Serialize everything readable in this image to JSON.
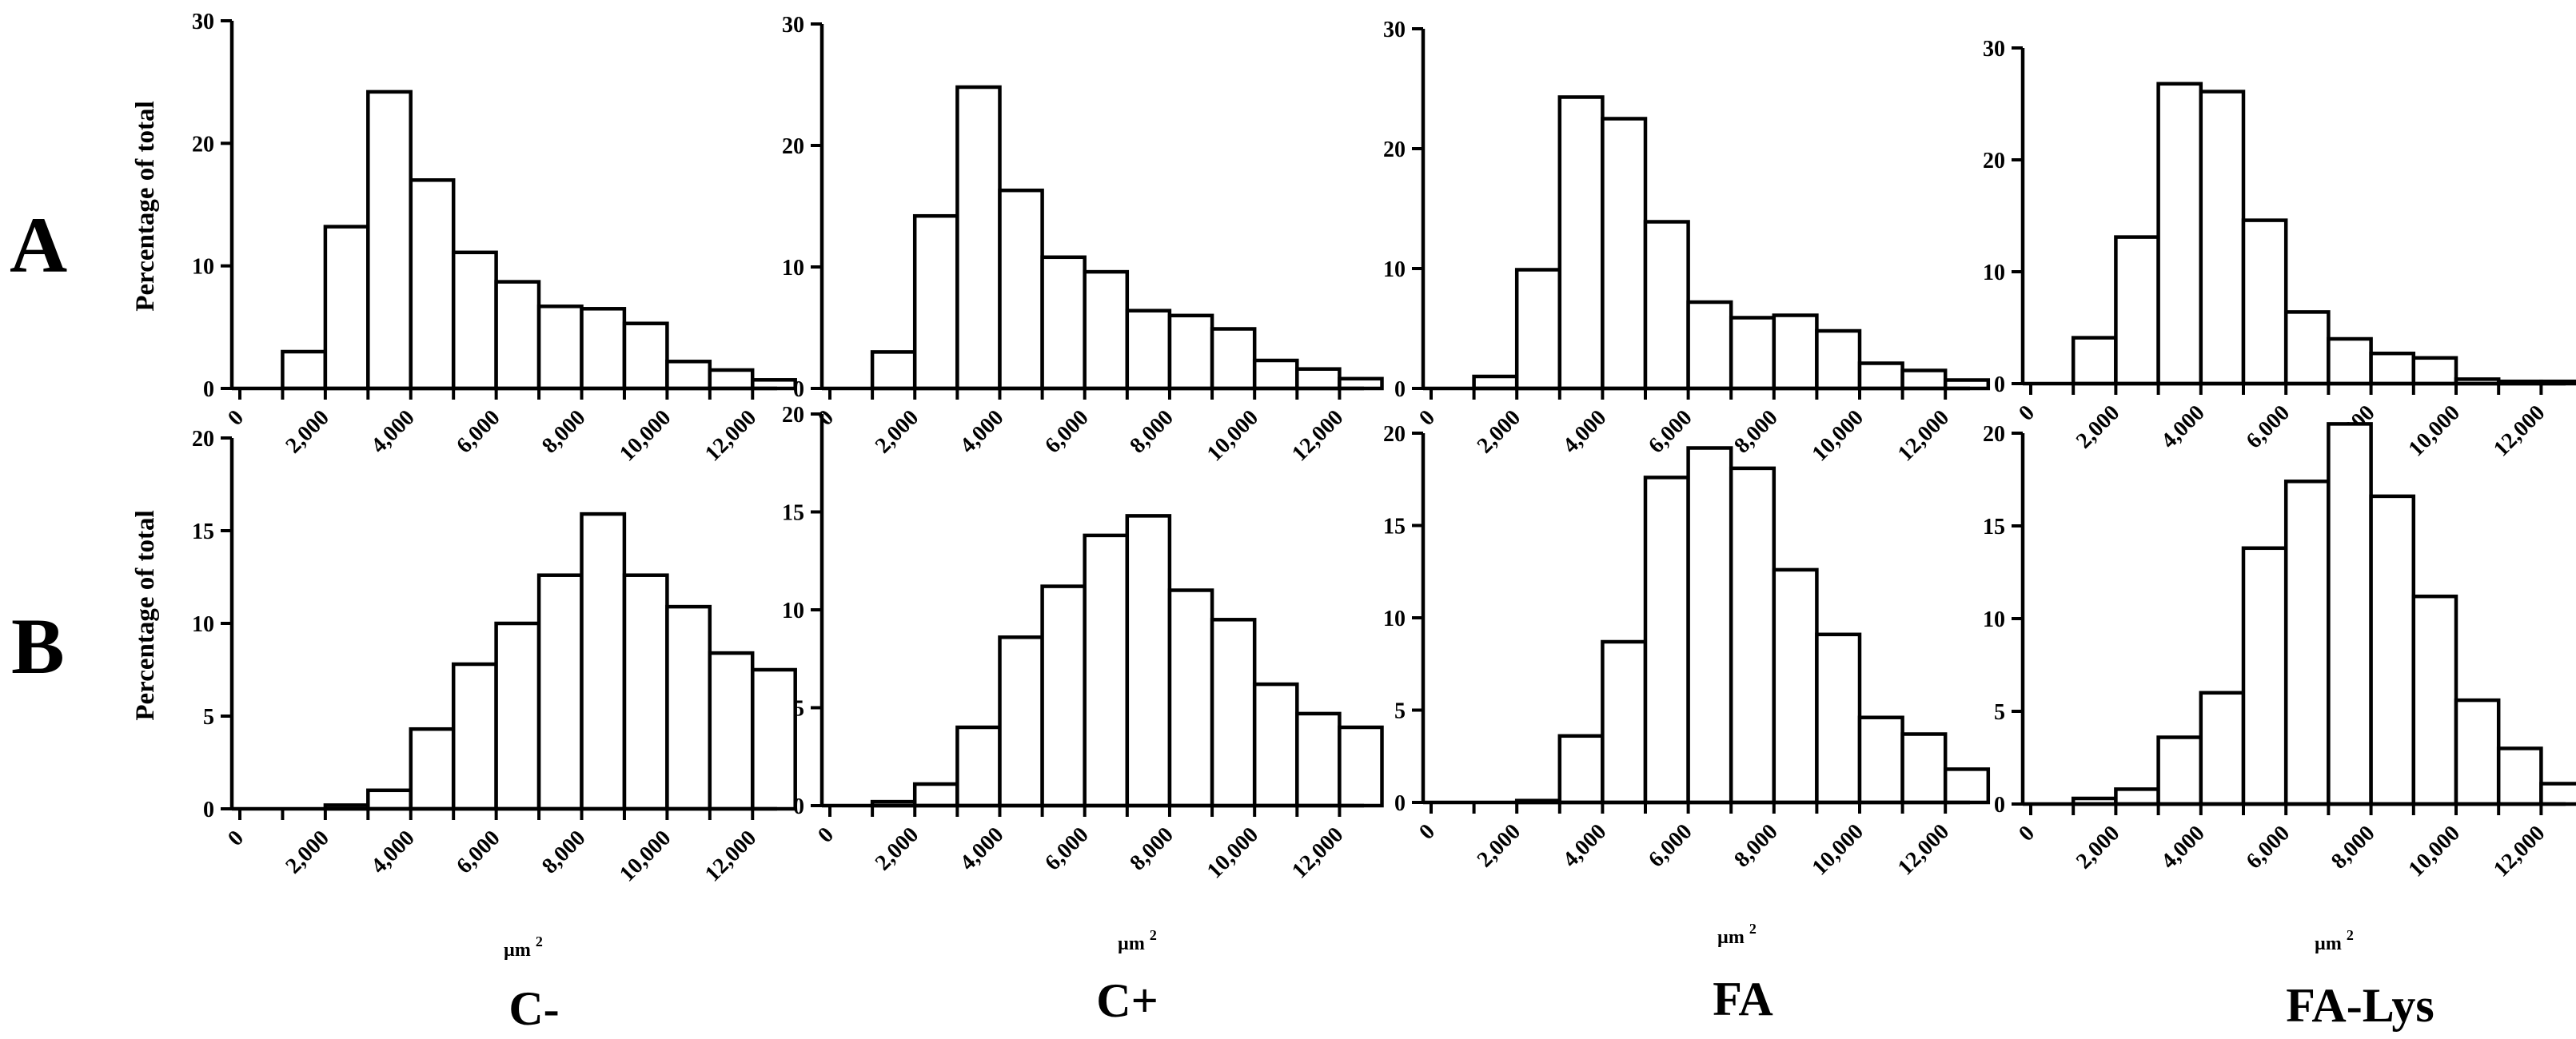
{
  "figure": {
    "rows": [
      "A",
      "B"
    ],
    "ylabel": "Percentage of total",
    "xlabel_unit": "µm",
    "xlabel_superscript": "2",
    "x_tick_labels": [
      "0",
      "2,000",
      "4,000",
      "6,000",
      "8,000",
      "10,000",
      "12,000"
    ],
    "groups": [
      "C-",
      "C+",
      "FA",
      "FA-Lys"
    ]
  },
  "chart_data": [
    {
      "type": "bar",
      "row": "A",
      "group": "C-",
      "ylabel": "Percentage of total",
      "xlabel": "µm²",
      "ylim": [
        0,
        30
      ],
      "yticks": [
        0,
        10,
        20,
        30
      ],
      "bin_width": 1000,
      "x_range": [
        0,
        12500
      ],
      "bins": [
        500,
        1500,
        2500,
        3500,
        4500,
        5500,
        6500,
        7500,
        8500,
        9500,
        10500,
        11500,
        12500
      ],
      "values": [
        0,
        3,
        13.2,
        24.2,
        17,
        11.1,
        8.7,
        6.7,
        6.5,
        5.3,
        2.2,
        1.5,
        0.7
      ]
    },
    {
      "type": "bar",
      "row": "A",
      "group": "C+",
      "ylabel": "",
      "xlabel": "µm²",
      "ylim": [
        0,
        30
      ],
      "yticks": [
        0,
        10,
        20,
        30
      ],
      "bin_width": 1000,
      "x_range": [
        0,
        12500
      ],
      "bins": [
        500,
        1500,
        2500,
        3500,
        4500,
        5500,
        6500,
        7500,
        8500,
        9500,
        10500,
        11500,
        12500
      ],
      "values": [
        0,
        3,
        14.2,
        24.8,
        16.3,
        10.8,
        9.6,
        6.4,
        6,
        4.9,
        2.3,
        1.6,
        0.8
      ]
    },
    {
      "type": "bar",
      "row": "A",
      "group": "FA",
      "ylabel": "",
      "xlabel": "µm²",
      "ylim": [
        0,
        30
      ],
      "yticks": [
        0,
        10,
        20,
        30
      ],
      "bin_width": 1000,
      "x_range": [
        0,
        12500
      ],
      "bins": [
        500,
        1500,
        2500,
        3500,
        4500,
        5500,
        6500,
        7500,
        8500,
        9500,
        10500,
        11500,
        12500
      ],
      "values": [
        0,
        1,
        9.9,
        24.3,
        22.5,
        13.9,
        7.2,
        5.9,
        6.1,
        4.8,
        2.1,
        1.5,
        0.7
      ]
    },
    {
      "type": "bar",
      "row": "A",
      "group": "FA-Lys",
      "ylabel": "",
      "xlabel": "µm²",
      "ylim": [
        0,
        30
      ],
      "yticks": [
        0,
        10,
        20,
        30
      ],
      "bin_width": 1000,
      "x_range": [
        0,
        12500
      ],
      "bins": [
        500,
        1500,
        2500,
        3500,
        4500,
        5500,
        6500,
        7500,
        8500,
        9500,
        10500,
        11500,
        12500
      ],
      "values": [
        0,
        4.1,
        13.1,
        26.8,
        26.1,
        14.6,
        6.4,
        4,
        2.7,
        2.3,
        0.4,
        0.2,
        0.2
      ]
    },
    {
      "type": "bar",
      "row": "B",
      "group": "C-",
      "ylabel": "Percentage of total",
      "xlabel": "µm²",
      "ylim": [
        0,
        20
      ],
      "yticks": [
        0,
        5,
        10,
        15,
        20
      ],
      "bin_width": 1000,
      "x_range": [
        0,
        12500
      ],
      "bins": [
        500,
        1500,
        2500,
        3500,
        4500,
        5500,
        6500,
        7500,
        8500,
        9500,
        10500,
        11500,
        12500
      ],
      "values": [
        0,
        0,
        0.2,
        1,
        4.3,
        7.8,
        10,
        12.6,
        15.9,
        12.6,
        10.9,
        8.4,
        7.5
      ]
    },
    {
      "type": "bar",
      "row": "B",
      "group": "C+",
      "ylabel": "",
      "xlabel": "µm²",
      "ylim": [
        0,
        20
      ],
      "yticks": [
        0,
        5,
        10,
        15,
        20
      ],
      "bin_width": 1000,
      "x_range": [
        0,
        12500
      ],
      "bins": [
        500,
        1500,
        2500,
        3500,
        4500,
        5500,
        6500,
        7500,
        8500,
        9500,
        10500,
        11500,
        12500
      ],
      "values": [
        0,
        0.2,
        1.1,
        4,
        8.6,
        11.2,
        13.8,
        14.8,
        11,
        9.5,
        6.2,
        4.7,
        4
      ]
    },
    {
      "type": "bar",
      "row": "B",
      "group": "FA",
      "ylabel": "",
      "xlabel": "µm²",
      "ylim": [
        0,
        20
      ],
      "yticks": [
        0,
        5,
        10,
        15,
        20
      ],
      "bin_width": 1000,
      "x_range": [
        0,
        12500
      ],
      "bins": [
        500,
        1500,
        2500,
        3500,
        4500,
        5500,
        6500,
        7500,
        8500,
        9500,
        10500,
        11500,
        12500
      ],
      "values": [
        0,
        0,
        0.1,
        3.6,
        8.7,
        17.6,
        19.2,
        18.1,
        12.6,
        9.1,
        4.6,
        3.7,
        1.8
      ]
    },
    {
      "type": "bar",
      "row": "B",
      "group": "FA-Lys",
      "ylabel": "",
      "xlabel": "µm²",
      "ylim": [
        0,
        20
      ],
      "yticks": [
        0,
        5,
        10,
        15,
        20
      ],
      "bin_width": 1000,
      "x_range": [
        0,
        12500
      ],
      "bins": [
        500,
        1500,
        2500,
        3500,
        4500,
        5500,
        6500,
        7500,
        8500,
        9500,
        10500,
        11500,
        12500
      ],
      "values": [
        0,
        0.3,
        0.8,
        3.6,
        6,
        13.8,
        17.4,
        20.5,
        16.6,
        11.2,
        5.6,
        3,
        1.1
      ]
    }
  ]
}
